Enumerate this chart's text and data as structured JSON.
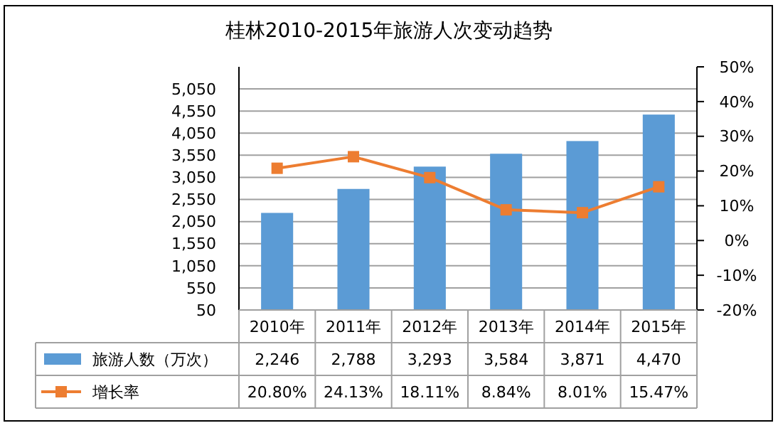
{
  "chart_data": {
    "type": "bar",
    "title": "桂林2010-2015年旅游人次变动趋势",
    "categories": [
      "2010年",
      "2011年",
      "2012年",
      "2013年",
      "2014年",
      "2015年"
    ],
    "series": [
      {
        "name": "旅游人数（万次）",
        "color": "#5b9bd5",
        "values": [
          2246,
          2788,
          3293,
          3584,
          3871,
          4470
        ],
        "value_labels": [
          "2,246",
          "2,788",
          "3,293",
          "3,584",
          "3,871",
          "4,470"
        ]
      },
      {
        "name": "增长率",
        "type": "line",
        "axis": "y2",
        "color": "#ed7d31",
        "marker": "square",
        "values": [
          20.8,
          24.13,
          18.11,
          8.84,
          8.01,
          15.47
        ],
        "value_labels": [
          "20.80%",
          "24.13%",
          "18.11%",
          "8.84%",
          "8.01%",
          "15.47%"
        ]
      }
    ],
    "ylim": [
      50,
      5550
    ],
    "yticks": [
      50,
      550,
      {
        "value": 1050,
        "label": "1,050"
      },
      {
        "value": 1550,
        "label": "1,550"
      },
      {
        "value": 2050,
        "label": "2,050"
      },
      {
        "value": 2550,
        "label": "2,550"
      },
      {
        "value": 3050,
        "label": "3,050"
      },
      {
        "value": 3550,
        "label": "3,550"
      },
      {
        "value": 4050,
        "label": "4,050"
      },
      {
        "value": 4550,
        "label": "4,550"
      },
      {
        "value": 5050,
        "label": "5,050"
      }
    ],
    "y2lim": [
      -20,
      50
    ],
    "y2ticks": [
      {
        "value": -20,
        "label": "-20%"
      },
      {
        "value": -10,
        "label": "-10%"
      },
      {
        "value": 0,
        "label": "0%"
      },
      {
        "value": 10,
        "label": "10%"
      },
      {
        "value": 20,
        "label": "20%"
      },
      {
        "value": 30,
        "label": "30%"
      },
      {
        "value": 40,
        "label": "40%"
      },
      {
        "value": 50,
        "label": "50%"
      }
    ],
    "grid": "y",
    "legend": "bottom left"
  }
}
